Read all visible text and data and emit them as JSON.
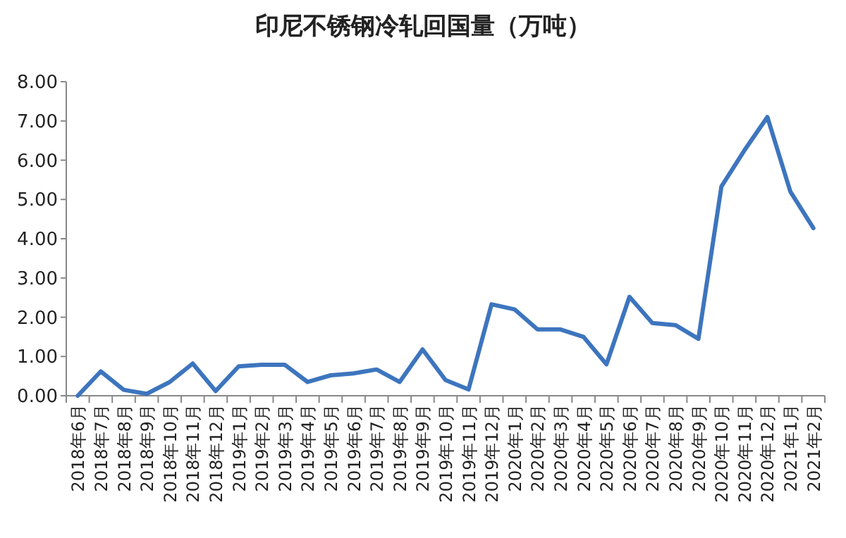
{
  "chart_data": {
    "type": "line",
    "title": "印尼不锈钢冷轧回国量（万吨）",
    "categories": [
      "2018年6月",
      "2018年7月",
      "2018年8月",
      "2018年9月",
      "2018年10月",
      "2018年11月",
      "2018年12月",
      "2019年1月",
      "2019年2月",
      "2019年3月",
      "2019年4月",
      "2019年5月",
      "2019年6月",
      "2019年7月",
      "2019年8月",
      "2019年9月",
      "2019年10月",
      "2019年11月",
      "2019年12月",
      "2020年1月",
      "2020年2月",
      "2020年3月",
      "2020年4月",
      "2020年5月",
      "2020年6月",
      "2020年7月",
      "2020年8月",
      "2020年9月",
      "2020年10月",
      "2020年11月",
      "2020年12月",
      "2021年1月",
      "2021年2月"
    ],
    "values": [
      0.0,
      0.62,
      0.15,
      0.05,
      0.35,
      0.82,
      0.12,
      0.75,
      0.79,
      0.79,
      0.35,
      0.52,
      0.57,
      0.67,
      0.35,
      1.18,
      0.4,
      0.16,
      2.33,
      2.2,
      1.69,
      1.69,
      1.5,
      0.8,
      2.52,
      1.85,
      1.8,
      1.45,
      5.33,
      6.25,
      7.1,
      5.2,
      4.27
    ],
    "color": "#3d75be",
    "ylim": [
      0,
      8
    ],
    "yticks": [
      {
        "value": 0,
        "label": "0.00"
      },
      {
        "value": 1,
        "label": "1.00"
      },
      {
        "value": 2,
        "label": "2.00"
      },
      {
        "value": 3,
        "label": "3.00"
      },
      {
        "value": 4,
        "label": "4.00"
      },
      {
        "value": 5,
        "label": "5.00"
      },
      {
        "value": 6,
        "label": "6.00"
      },
      {
        "value": 7,
        "label": "7.00"
      },
      {
        "value": 8,
        "label": "8.00"
      }
    ],
    "grid": false,
    "legend": false,
    "marker": "none",
    "line_style": "solid"
  }
}
